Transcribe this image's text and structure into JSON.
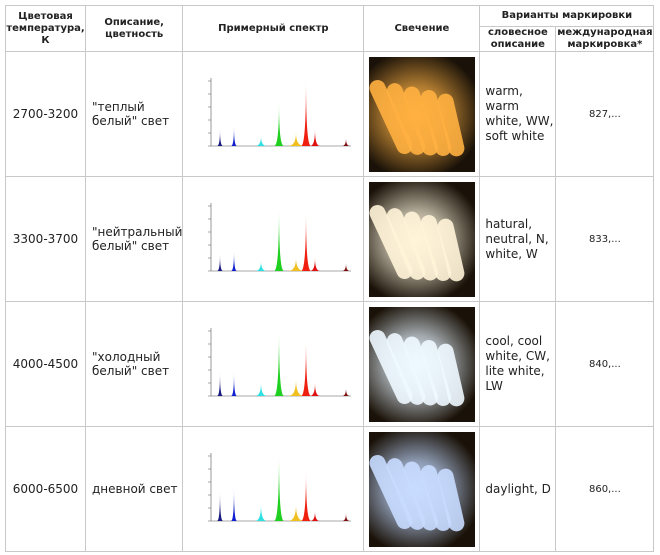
{
  "headers": {
    "temp": "Цветовая температура, К",
    "desc": "Описание, цветность",
    "spectrum": "Примерный спектр",
    "glow": "Свечение",
    "marking": "Варианты маркировки",
    "verbal": "словесное описание",
    "intl": "международная маркировка*"
  },
  "rows": [
    {
      "temp": "2700-3200",
      "desc": "\"теплый белый\" свет",
      "verbal": "warm, warm white, WW, soft white",
      "intl": "827,...",
      "glow_color": "#ffb040",
      "spectrum": {
        "blue1": 0.25,
        "blue2": 0.3,
        "cyan": 0.15,
        "green": 0.65,
        "orange": 0.2,
        "red": 1.0,
        "red2": 0.25
      }
    },
    {
      "temp": "3300-3700",
      "desc": "\"нейтральный белый\" свет",
      "verbal": "hatural, neutral, N, white, W",
      "intl": "833,...",
      "glow_color": "#fff4d8",
      "spectrum": {
        "blue1": 0.25,
        "blue2": 0.3,
        "cyan": 0.15,
        "green": 0.95,
        "orange": 0.2,
        "red": 0.9,
        "red2": 0.2
      }
    },
    {
      "temp": "4000-4500",
      "desc": "\"холодный белый\" свет",
      "verbal": "cool, cool white, CW, lite white, LW",
      "intl": "840,...",
      "glow_color": "#eef8ff",
      "spectrum": {
        "blue1": 0.35,
        "blue2": 0.35,
        "cyan": 0.2,
        "green": 1.0,
        "orange": 0.25,
        "red": 0.85,
        "red2": 0.2
      }
    },
    {
      "temp": "6000-6500",
      "desc": "дневной свет",
      "verbal": "daylight, D",
      "intl": "860,...",
      "glow_color": "#c8dcff",
      "spectrum": {
        "blue1": 0.45,
        "blue2": 0.5,
        "cyan": 0.25,
        "green": 1.0,
        "orange": 0.25,
        "red": 0.75,
        "red2": 0.15
      }
    }
  ]
}
